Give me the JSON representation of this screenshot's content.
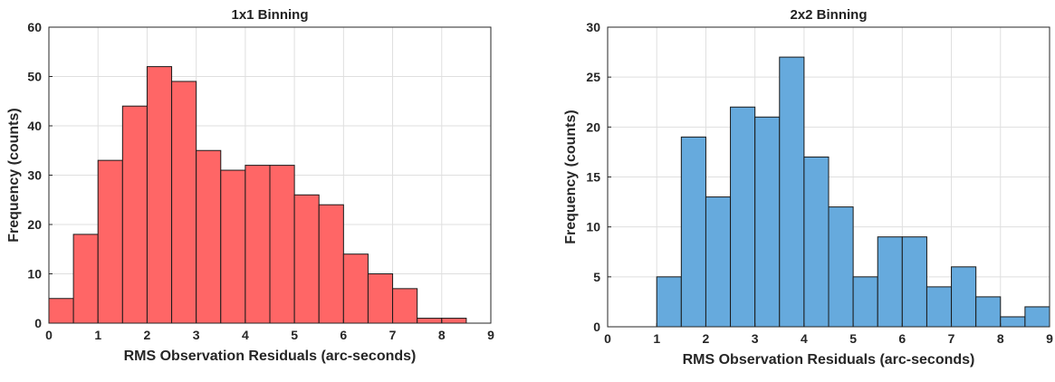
{
  "chart_data": [
    {
      "type": "bar",
      "title": "1x1 Binning",
      "xlabel": "RMS Observation Residuals (arc-seconds)",
      "ylabel": "Frequency (counts)",
      "bin_edges": [
        0,
        0.5,
        1,
        1.5,
        2,
        2.5,
        3,
        3.5,
        4,
        4.5,
        5,
        5.5,
        6,
        6.5,
        7,
        7.5,
        8,
        8.5
      ],
      "values": [
        5,
        18,
        33,
        44,
        52,
        49,
        35,
        31,
        32,
        32,
        26,
        24,
        14,
        10,
        7,
        1,
        1
      ],
      "xlim": [
        0,
        9
      ],
      "ylim": [
        0,
        60
      ],
      "xticks": [
        0,
        1,
        2,
        3,
        4,
        5,
        6,
        7,
        8,
        9
      ],
      "yticks": [
        0,
        10,
        20,
        30,
        40,
        50,
        60
      ],
      "color": "#ff6666",
      "grid": true
    },
    {
      "type": "bar",
      "title": "2x2 Binning",
      "xlabel": "RMS Observation Residuals (arc-seconds)",
      "ylabel": "Frequency (counts)",
      "bin_edges": [
        0,
        0.5,
        1,
        1.5,
        2,
        2.5,
        3,
        3.5,
        4,
        4.5,
        5,
        5.5,
        6,
        6.5,
        7,
        7.5,
        8,
        8.5,
        9
      ],
      "values": [
        0,
        0,
        5,
        19,
        13,
        22,
        21,
        27,
        17,
        12,
        5,
        9,
        9,
        4,
        6,
        3,
        1,
        2
      ],
      "xlim": [
        0,
        9
      ],
      "ylim": [
        0,
        30
      ],
      "xticks": [
        0,
        1,
        2,
        3,
        4,
        5,
        6,
        7,
        8,
        9
      ],
      "yticks": [
        0,
        5,
        10,
        15,
        20,
        25,
        30
      ],
      "color": "#66aadd",
      "grid": true
    }
  ]
}
